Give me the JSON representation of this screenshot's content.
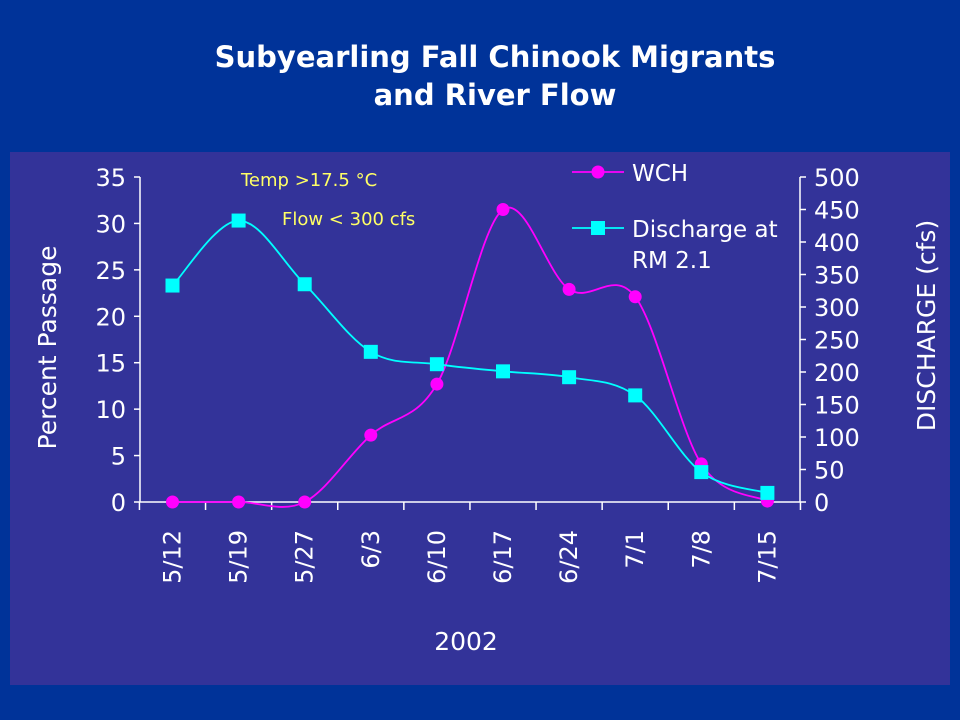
{
  "slide": {
    "title_line1": "Subyearling Fall Chinook Migrants",
    "title_line2": "and River Flow"
  },
  "colors": {
    "background": "#003399",
    "plot_area": "#333399",
    "wch": "#ff00ff",
    "discharge": "#00ffff",
    "annotation": "#ffff66",
    "text": "#ffffff"
  },
  "chart_data": {
    "type": "line",
    "title": "Subyearling Fall Chinook Migrants and River Flow",
    "xlabel": "2002",
    "ylabel": "Percent Passage",
    "y2label": "DISCHARGE (cfs)",
    "categories": [
      "5/12",
      "5/19",
      "5/27",
      "6/3",
      "6/10",
      "6/17",
      "6/24",
      "7/1",
      "7/8",
      "7/15"
    ],
    "ylim": [
      0,
      35
    ],
    "yticks": [
      0,
      5,
      10,
      15,
      20,
      25,
      30,
      35
    ],
    "y2lim": [
      0,
      500
    ],
    "y2ticks": [
      0,
      50,
      100,
      150,
      200,
      250,
      300,
      350,
      400,
      450,
      500
    ],
    "grid": false,
    "legend_position": "top-right",
    "series": [
      {
        "name": "WCH",
        "axis": "left",
        "marker": "circle",
        "color": "#ff00ff",
        "values": [
          0,
          0,
          0,
          7.2,
          12.7,
          31.5,
          22.9,
          22.1,
          4.1,
          0.1
        ]
      },
      {
        "name": "Discharge at RM 2.1",
        "axis": "right",
        "marker": "square",
        "color": "#00ffff",
        "values": [
          333,
          433,
          335,
          231,
          212,
          201,
          192,
          164,
          46,
          14
        ]
      }
    ],
    "annotations": [
      {
        "text": "Temp  >17.5 °C"
      },
      {
        "text": "Flow  < 300 cfs"
      }
    ],
    "legend": [
      "WCH",
      "Discharge at",
      "RM 2.1"
    ]
  }
}
